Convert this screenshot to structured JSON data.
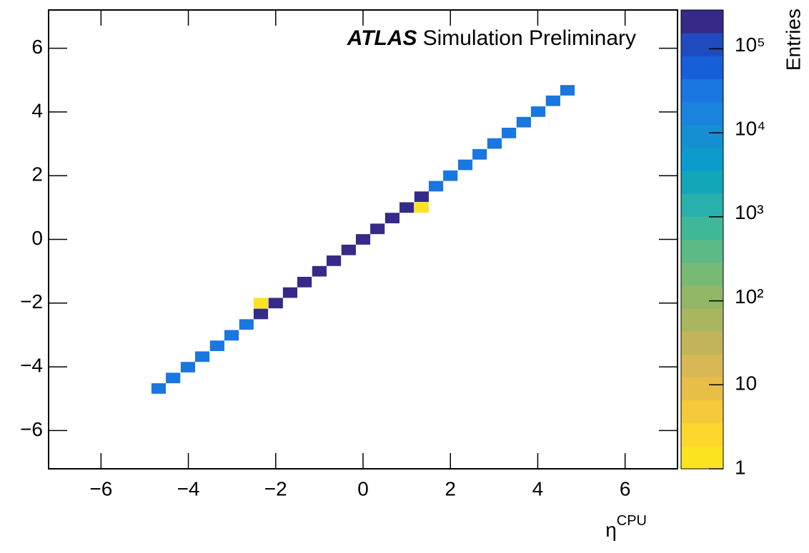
{
  "chart_data": {
    "type": "heatmap",
    "title": "ATLAS",
    "subtitle": "Simulation Preliminary",
    "xlabel": "η",
    "xlabel_superscript": "CPU",
    "zlabel": "Entries",
    "x": [
      -4.68,
      -4.35,
      -4.01,
      -3.68,
      -3.34,
      -3.01,
      -2.67,
      -2.34,
      -2.0,
      -1.67,
      -1.34,
      -1.0,
      -0.67,
      -0.33,
      0,
      0.33,
      0.67,
      1.0,
      1.34,
      1.67,
      2.0,
      2.34,
      2.67,
      3.01,
      3.34,
      3.68,
      4.01,
      4.35,
      4.68,
      1.34,
      -2.34
    ],
    "y": [
      -4.68,
      -4.35,
      -4.01,
      -3.68,
      -3.34,
      -3.01,
      -2.67,
      -2.34,
      -2.0,
      -1.67,
      -1.34,
      -1.0,
      -0.67,
      -0.33,
      0,
      0.33,
      0.67,
      1.0,
      1.34,
      1.67,
      2.0,
      2.34,
      2.67,
      3.01,
      3.34,
      3.68,
      4.01,
      4.35,
      4.68,
      1.0,
      -2.0
    ],
    "values": [
      30000,
      30000,
      30000,
      30000,
      30000,
      30000,
      30000,
      200000,
      200000,
      200000,
      200000,
      200000,
      200000,
      200000,
      200000,
      200000,
      200000,
      200000,
      200000,
      30000,
      30000,
      30000,
      30000,
      30000,
      30000,
      30000,
      30000,
      30000,
      30000,
      1,
      1
    ],
    "xlim": [
      -7.2,
      7.2
    ],
    "ylim": [
      -7.2,
      7.2
    ],
    "xticks": [
      {
        "value": -6,
        "label": "−6"
      },
      {
        "value": -4,
        "label": "−4"
      },
      {
        "value": -2,
        "label": "−2"
      },
      0,
      2,
      4,
      6
    ],
    "yticks": [
      {
        "value": -6,
        "label": "−6"
      },
      {
        "value": -4,
        "label": "−4"
      },
      {
        "value": -2,
        "label": "−2"
      },
      0,
      2,
      4,
      6
    ],
    "zlim": [
      1,
      290000
    ],
    "zlog": true,
    "zticks": [
      1,
      10,
      {
        "value": 100,
        "label": "10²"
      },
      {
        "value": 1000,
        "label": "10³"
      },
      {
        "value": 10000,
        "label": "10⁴"
      },
      {
        "value": 100000,
        "label": "10⁵"
      }
    ],
    "colorscale": [
      "#fce31f",
      "#fed72c",
      "#f5c93a",
      "#e9be46",
      "#d8b855",
      "#c2b45b",
      "#aab55f",
      "#91b767",
      "#76ba76",
      "#5bba86",
      "#41b799",
      "#28b0ac",
      "#13a6ba",
      "#0d9bcb",
      "#1490d2",
      "#1a83dd",
      "#1a76e0",
      "#175fd8",
      "#1f4bbf",
      "#352a87"
    ]
  }
}
